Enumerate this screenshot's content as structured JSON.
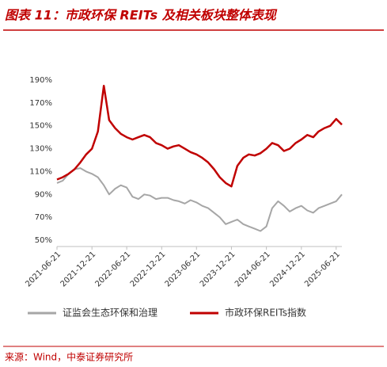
{
  "chart_data": {
    "type": "line",
    "title": "图表 11：市政环保 REITs 及相关板块整体表现",
    "source": "来源：Wind，中泰证券研究所",
    "x": [
      "2021-06-21",
      "2021-07-21",
      "2021-08-21",
      "2021-09-21",
      "2021-10-21",
      "2021-11-21",
      "2021-12-21",
      "2022-01-21",
      "2022-02-21",
      "2022-03-21",
      "2022-04-21",
      "2022-05-21",
      "2022-06-21",
      "2022-07-21",
      "2022-08-21",
      "2022-09-21",
      "2022-10-21",
      "2022-11-21",
      "2022-12-21",
      "2023-01-21",
      "2023-02-21",
      "2023-03-21",
      "2023-04-21",
      "2023-05-21",
      "2023-06-21",
      "2023-07-21",
      "2023-08-21",
      "2023-09-21",
      "2023-10-21",
      "2023-11-21",
      "2023-12-21",
      "2024-01-21",
      "2024-02-21",
      "2024-03-21",
      "2024-04-21",
      "2024-05-21",
      "2024-06-21",
      "2024-07-21",
      "2024-08-21",
      "2024-09-21",
      "2024-10-21",
      "2024-11-21",
      "2024-12-21",
      "2025-01-21",
      "2025-02-21",
      "2025-03-21",
      "2025-04-21",
      "2025-05-21",
      "2025-06-21",
      "2025-07-21"
    ],
    "series": [
      {
        "name": "证监会生态环保和治理",
        "color": "#a6a6a6",
        "values": [
          100,
          102,
          108,
          112,
          113,
          110,
          108,
          105,
          98,
          90,
          95,
          98,
          96,
          88,
          86,
          90,
          89,
          86,
          87,
          87,
          85,
          84,
          82,
          85,
          83,
          80,
          78,
          74,
          70,
          64,
          66,
          68,
          64,
          62,
          60,
          58,
          62,
          78,
          84,
          80,
          75,
          78,
          80,
          76,
          74,
          78,
          80,
          82,
          84,
          90
        ]
      },
      {
        "name": "市政环保REITs指数",
        "color": "#c00000",
        "values": [
          103,
          105,
          108,
          112,
          118,
          125,
          130,
          145,
          185,
          155,
          148,
          143,
          140,
          138,
          140,
          142,
          140,
          135,
          133,
          130,
          132,
          133,
          130,
          127,
          125,
          122,
          118,
          112,
          105,
          100,
          97,
          115,
          122,
          125,
          124,
          126,
          130,
          135,
          133,
          128,
          130,
          135,
          138,
          142,
          140,
          145,
          148,
          150,
          156,
          151
        ]
      }
    ],
    "xlim": [
      "2021-06-21",
      "2025-07-21"
    ],
    "xticks": [
      "2021-06-21",
      "2021-12-21",
      "2022-06-21",
      "2022-12-21",
      "2023-06-21",
      "2023-12-21",
      "2024-06-21",
      "2024-12-21",
      "2025-06-21"
    ],
    "ylim": [
      50,
      190
    ],
    "yticks": [
      {
        "value": 50,
        "label": "50%"
      },
      {
        "value": 70,
        "label": "70%"
      },
      {
        "value": 90,
        "label": "90%"
      },
      {
        "value": 110,
        "label": "110%"
      },
      {
        "value": 130,
        "label": "130%"
      },
      {
        "value": 150,
        "label": "150%"
      },
      {
        "value": 170,
        "label": "170%"
      },
      {
        "value": 190,
        "label": "190%"
      }
    ],
    "grid": false
  }
}
